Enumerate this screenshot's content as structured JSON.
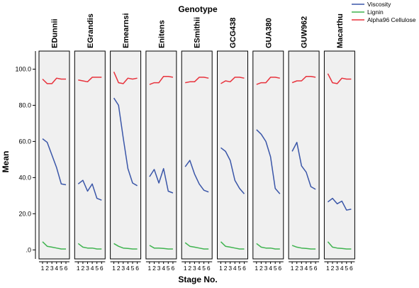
{
  "chart_data": {
    "type": "line",
    "title": "Genotype",
    "xlabel": "Stage No.",
    "ylabel": "Mean",
    "ylim": [
      -5,
      110
    ],
    "yticks": [
      0,
      20,
      40,
      60,
      80,
      100
    ],
    "ytick_labels": [
      ".0",
      "20.0",
      "40.0",
      "60.0",
      "80.0",
      "100.0"
    ],
    "x": [
      1,
      2,
      3,
      4,
      5,
      6
    ],
    "xtick_labels": [
      "1",
      "2",
      "3",
      "4",
      "5",
      "6"
    ],
    "legend_position": "top-right",
    "series_meta": [
      {
        "name": "Viscosity",
        "color": "#3a56a8"
      },
      {
        "name": "Lignin",
        "color": "#3fb34f"
      },
      {
        "name": "Alpha96 Cellulose",
        "color": "#e8323c"
      }
    ],
    "panels": [
      {
        "name": "EDunnii",
        "values": [
          [
            61.5,
            59.5,
            52.5,
            45.5,
            36.5,
            36.0
          ],
          [
            4.5,
            2.0,
            1.5,
            1.0,
            0.5,
            0.5
          ],
          [
            94.5,
            92.0,
            92.0,
            95.0,
            94.5,
            94.5
          ]
        ]
      },
      {
        "name": "EGrandis",
        "values": [
          [
            36.5,
            38.5,
            32.5,
            36.5,
            28.5,
            27.5
          ],
          [
            3.5,
            1.5,
            1.0,
            1.0,
            0.5,
            0.5
          ],
          [
            94.0,
            93.5,
            93.0,
            95.5,
            95.5,
            95.5
          ]
        ]
      },
      {
        "name": "Emearnsi",
        "values": [
          [
            84.0,
            80.0,
            62.0,
            45.0,
            37.0,
            35.5
          ],
          [
            3.5,
            2.0,
            1.0,
            0.8,
            0.5,
            0.5
          ],
          [
            98.5,
            92.5,
            92.0,
            95.0,
            94.5,
            95.0
          ]
        ]
      },
      {
        "name": "Enitens",
        "values": [
          [
            40.5,
            44.5,
            37.0,
            45.0,
            32.5,
            31.5
          ],
          [
            2.5,
            1.0,
            1.0,
            0.8,
            0.5,
            0.5
          ],
          [
            91.5,
            92.5,
            92.5,
            96.0,
            96.0,
            95.5
          ]
        ]
      },
      {
        "name": "ESmithii",
        "values": [
          [
            46.0,
            49.5,
            42.0,
            36.5,
            33.0,
            32.0
          ],
          [
            4.0,
            2.0,
            1.5,
            1.0,
            0.5,
            0.5
          ],
          [
            92.5,
            93.0,
            93.0,
            95.5,
            95.5,
            95.0
          ]
        ]
      },
      {
        "name": "GCG438",
        "values": [
          [
            56.5,
            54.5,
            49.5,
            38.5,
            34.0,
            31.0
          ],
          [
            4.5,
            2.0,
            1.5,
            1.0,
            0.5,
            0.5
          ],
          [
            92.0,
            93.5,
            93.0,
            95.5,
            95.5,
            95.0
          ]
        ]
      },
      {
        "name": "GUA380",
        "values": [
          [
            66.5,
            64.0,
            60.0,
            51.5,
            34.0,
            31.0
          ],
          [
            3.5,
            1.5,
            1.0,
            1.0,
            0.5,
            0.5
          ],
          [
            91.5,
            92.5,
            92.5,
            95.5,
            95.5,
            95.0
          ]
        ]
      },
      {
        "name": "GUW962",
        "values": [
          [
            54.5,
            59.5,
            46.5,
            43.0,
            35.0,
            33.5
          ],
          [
            2.5,
            1.5,
            1.0,
            0.8,
            0.5,
            0.5
          ],
          [
            92.5,
            93.5,
            93.5,
            96.0,
            96.0,
            95.5
          ]
        ]
      },
      {
        "name": "Macarthu",
        "values": [
          [
            26.5,
            28.5,
            25.5,
            27.0,
            22.0,
            22.5
          ],
          [
            4.5,
            1.5,
            1.0,
            0.8,
            0.5,
            0.5
          ],
          [
            97.5,
            92.5,
            92.0,
            95.0,
            94.5,
            94.5
          ]
        ]
      }
    ]
  }
}
